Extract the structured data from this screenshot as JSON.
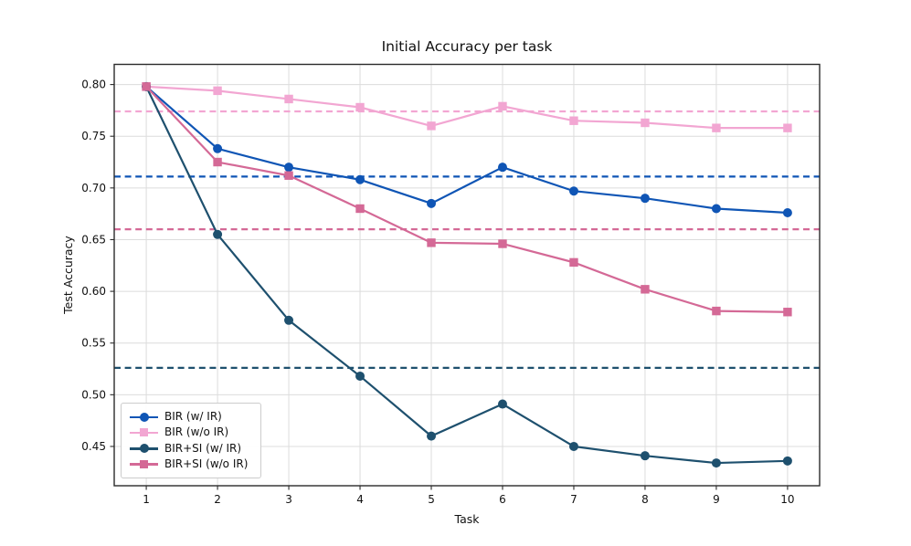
{
  "chart_data": {
    "type": "line",
    "title": "Initial Accuracy per task",
    "xlabel": "Task",
    "ylabel": "Test Accuracy",
    "x": [
      1,
      2,
      3,
      4,
      5,
      6,
      7,
      8,
      9,
      10
    ],
    "x_tick_labels": [
      "1",
      "2",
      "3",
      "4",
      "5",
      "6",
      "7",
      "8",
      "9",
      "10"
    ],
    "y_tick_labels": [
      "0.45",
      "0.50",
      "0.55",
      "0.60",
      "0.65",
      "0.70",
      "0.75",
      "0.80"
    ],
    "xlim": [
      0.55,
      10.45
    ],
    "ylim": [
      0.412,
      0.8195
    ],
    "grid": true,
    "grid_color": "#dcdcdc",
    "legend_position": "lower left",
    "series": [
      {
        "name": "BIR (w/ IR)",
        "color": "#0f55b5",
        "marker": "circle",
        "values": [
          0.798,
          0.738,
          0.72,
          0.708,
          0.685,
          0.72,
          0.697,
          0.69,
          0.68,
          0.676
        ],
        "mean_line": 0.711
      },
      {
        "name": "BIR (w/o IR)",
        "color": "#f2a6d2",
        "marker": "square",
        "values": [
          0.798,
          0.794,
          0.786,
          0.778,
          0.76,
          0.779,
          0.765,
          0.763,
          0.758,
          0.758
        ],
        "mean_line": 0.774
      },
      {
        "name": "BIR+SI (w/ IR)",
        "color": "#1e506e",
        "marker": "circle",
        "values": [
          0.798,
          0.655,
          0.572,
          0.518,
          0.46,
          0.491,
          0.45,
          0.441,
          0.434,
          0.436
        ],
        "mean_line": 0.526
      },
      {
        "name": "BIR+SI (w/o IR)",
        "color": "#d46996",
        "marker": "square",
        "values": [
          0.798,
          0.725,
          0.712,
          0.68,
          0.647,
          0.646,
          0.628,
          0.602,
          0.581,
          0.58
        ],
        "mean_line": 0.66
      }
    ]
  }
}
